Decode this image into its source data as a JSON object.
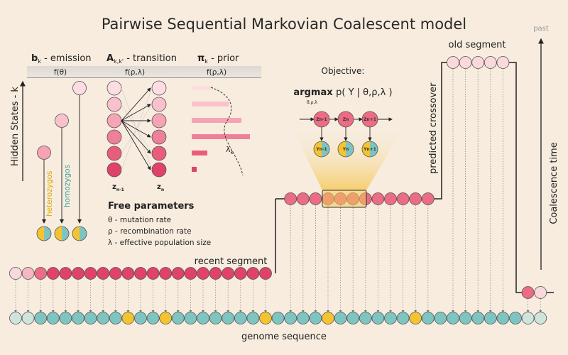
{
  "title": "Pairwise Sequential Markovian Coalescent model",
  "emission": {
    "symbol": "b",
    "sub": "k",
    "label": " - emission",
    "func": "f(θ)"
  },
  "transition": {
    "symbol": "A",
    "sub": "k,k'",
    "label": " - transition",
    "func": "f(ρ,λ)"
  },
  "prior": {
    "symbol": "π",
    "sub": "k",
    "label": " - prior",
    "func": "f(ρ,λ)",
    "lambda_label": "λ",
    "lambda_sub": "k"
  },
  "hidden_states_label": "Hidden States - k",
  "heterozygos_label": "heterozygos",
  "homozygos_label": "homozygos",
  "z_prev": "z",
  "z_prev_sub": "n-1",
  "z_cur": "z",
  "z_cur_sub": "n",
  "free_params": {
    "heading": "Free parameters",
    "items": [
      "θ - mutation rate",
      "ρ - recombination rate",
      "λ - effective population size"
    ]
  },
  "objective": {
    "label": "Objective:",
    "formula_prefix": "argmax ",
    "formula_body": "p( Y | θ,ρ,λ )",
    "formula_sub": "θ,ρ,λ",
    "z_nodes": [
      "Zn-1",
      "Zn",
      "Zn+1"
    ],
    "y_nodes": [
      "Yn-1",
      "Yn",
      "Yn+1"
    ]
  },
  "old_segment": "old segment",
  "recent_segment": "recent segment",
  "predicted_crossover": "predicted crossover",
  "coalescence_time": "Coalescence time",
  "past": "past",
  "genome_sequence": "genome sequence",
  "colors": {
    "background": "#f7ecde",
    "deep_pink": "#e0426a",
    "mid_pink": "#ec6b85",
    "light_pink": "#f5b7c2",
    "pale_pink": "#fad9dd",
    "teal": "#7ec4c1",
    "pale_teal": "#cfe4dc",
    "yellow": "#f4c430"
  },
  "genome": [
    "pt",
    "pt",
    "t",
    "t",
    "t",
    "t",
    "t",
    "t",
    "t",
    "y",
    "t",
    "t",
    "y",
    "t",
    "t",
    "t",
    "t",
    "t",
    "t",
    "t",
    "y",
    "t",
    "t",
    "t",
    "t",
    "y",
    "t",
    "t",
    "t",
    "t",
    "t",
    "t",
    "y",
    "t",
    "t",
    "t",
    "t",
    "t",
    "t",
    "t",
    "t",
    "pt",
    "pt"
  ]
}
